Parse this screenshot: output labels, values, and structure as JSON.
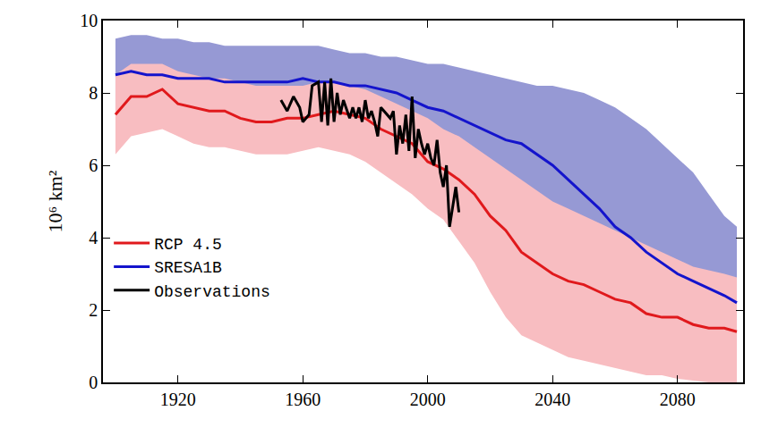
{
  "chart_data": {
    "type": "line",
    "y_label": "10⁶ km²",
    "x": [
      1900,
      1905,
      1910,
      1915,
      1920,
      1925,
      1930,
      1935,
      1940,
      1945,
      1950,
      1955,
      1960,
      1965,
      1970,
      1975,
      1980,
      1985,
      1990,
      1995,
      2000,
      2005,
      2010,
      2015,
      2020,
      2025,
      2030,
      2035,
      2040,
      2045,
      2050,
      2055,
      2060,
      2065,
      2070,
      2075,
      2080,
      2085,
      2090,
      2095,
      2099
    ],
    "xlim": [
      1896,
      2101
    ],
    "xticks": [
      1920,
      1960,
      2000,
      2040,
      2080
    ],
    "ylim": [
      0,
      10
    ],
    "yticks": [
      0,
      2,
      4,
      6,
      8,
      10
    ],
    "grid": false,
    "legend": "left",
    "series": [
      {
        "name": "RCP 4.5",
        "color": "#e0191c",
        "values": [
          7.4,
          7.9,
          7.9,
          8.1,
          7.7,
          7.6,
          7.5,
          7.5,
          7.3,
          7.2,
          7.2,
          7.3,
          7.3,
          7.4,
          7.5,
          7.4,
          7.3,
          7.0,
          6.8,
          6.6,
          6.1,
          5.9,
          5.6,
          5.2,
          4.6,
          4.2,
          3.6,
          3.3,
          3.0,
          2.8,
          2.7,
          2.5,
          2.3,
          2.2,
          1.9,
          1.8,
          1.8,
          1.6,
          1.5,
          1.5,
          1.4
        ],
        "lower": [
          6.3,
          6.8,
          6.9,
          7.0,
          6.8,
          6.6,
          6.5,
          6.5,
          6.4,
          6.3,
          6.3,
          6.3,
          6.4,
          6.5,
          6.4,
          6.3,
          6.1,
          5.8,
          5.5,
          5.2,
          4.8,
          4.5,
          3.9,
          3.3,
          2.5,
          1.8,
          1.3,
          1.1,
          0.9,
          0.7,
          0.6,
          0.5,
          0.4,
          0.3,
          0.2,
          0.2,
          0.1,
          0.05,
          0,
          0,
          0
        ],
        "upper": [
          8.5,
          8.8,
          8.8,
          8.8,
          8.6,
          8.5,
          8.4,
          8.4,
          8.3,
          8.2,
          8.2,
          8.2,
          8.2,
          8.3,
          8.3,
          8.2,
          8.1,
          7.9,
          7.7,
          7.5,
          7.3,
          7.0,
          6.8,
          6.5,
          6.2,
          5.9,
          5.6,
          5.3,
          5.0,
          4.8,
          4.6,
          4.4,
          4.2,
          4.0,
          3.8,
          3.6,
          3.4,
          3.2,
          3.1,
          3.0,
          2.9
        ]
      },
      {
        "name": "SRESA1B",
        "color": "#1414cc",
        "values": [
          8.5,
          8.6,
          8.5,
          8.5,
          8.4,
          8.4,
          8.4,
          8.3,
          8.3,
          8.3,
          8.3,
          8.3,
          8.4,
          8.3,
          8.3,
          8.2,
          8.2,
          8.1,
          8.0,
          7.8,
          7.6,
          7.5,
          7.3,
          7.1,
          6.9,
          6.7,
          6.6,
          6.3,
          6.0,
          5.6,
          5.2,
          4.8,
          4.3,
          4.0,
          3.6,
          3.3,
          3.0,
          2.8,
          2.6,
          2.4,
          2.2
        ],
        "lower": [
          7.5,
          7.6,
          7.6,
          7.5,
          7.5,
          7.4,
          7.4,
          7.3,
          7.3,
          7.3,
          7.3,
          7.3,
          7.3,
          7.3,
          7.2,
          7.1,
          7.0,
          6.9,
          6.7,
          6.5,
          6.3,
          6.1,
          5.8,
          5.5,
          5.2,
          4.9,
          4.6,
          4.3,
          3.9,
          3.5,
          3.1,
          2.7,
          2.3,
          2.0,
          1.7,
          1.5,
          1.3,
          1.2,
          1.1,
          1.0,
          0.9
        ],
        "upper": [
          9.5,
          9.6,
          9.6,
          9.5,
          9.5,
          9.4,
          9.4,
          9.3,
          9.3,
          9.3,
          9.3,
          9.3,
          9.3,
          9.3,
          9.2,
          9.1,
          9.1,
          9.0,
          9.0,
          8.9,
          8.8,
          8.8,
          8.7,
          8.6,
          8.5,
          8.4,
          8.3,
          8.2,
          8.2,
          8.1,
          8.0,
          7.8,
          7.6,
          7.3,
          7.0,
          6.6,
          6.2,
          5.8,
          5.2,
          4.6,
          4.3
        ]
      },
      {
        "name": "Observations",
        "color": "#000000",
        "x": [
          1953,
          1955,
          1957,
          1959,
          1960,
          1962,
          1963,
          1965,
          1966,
          1967,
          1968,
          1969,
          1970,
          1971,
          1972,
          1973,
          1975,
          1976,
          1977,
          1978,
          1979,
          1980,
          1981,
          1982,
          1983,
          1984,
          1985,
          1986,
          1987,
          1988,
          1989,
          1990,
          1991,
          1992,
          1993,
          1994,
          1995,
          1996,
          1997,
          1998,
          1999,
          2000,
          2001,
          2002,
          2003,
          2004,
          2005,
          2006,
          2007,
          2008,
          2009,
          2010
        ],
        "values": [
          7.8,
          7.5,
          7.9,
          7.6,
          7.2,
          7.4,
          8.2,
          8.3,
          7.2,
          8.3,
          7.1,
          8.4,
          7.2,
          8.0,
          7.4,
          7.8,
          7.3,
          7.6,
          7.3,
          7.6,
          7.2,
          7.8,
          7.3,
          7.5,
          7.2,
          6.8,
          7.6,
          7.5,
          7.4,
          7.3,
          7.5,
          6.3,
          7.1,
          6.6,
          7.4,
          6.4,
          7.9,
          6.2,
          7.0,
          6.6,
          6.3,
          6.6,
          6.2,
          6.0,
          6.7,
          5.8,
          5.4,
          6.0,
          4.3,
          4.8,
          5.4,
          4.7
        ]
      }
    ]
  }
}
